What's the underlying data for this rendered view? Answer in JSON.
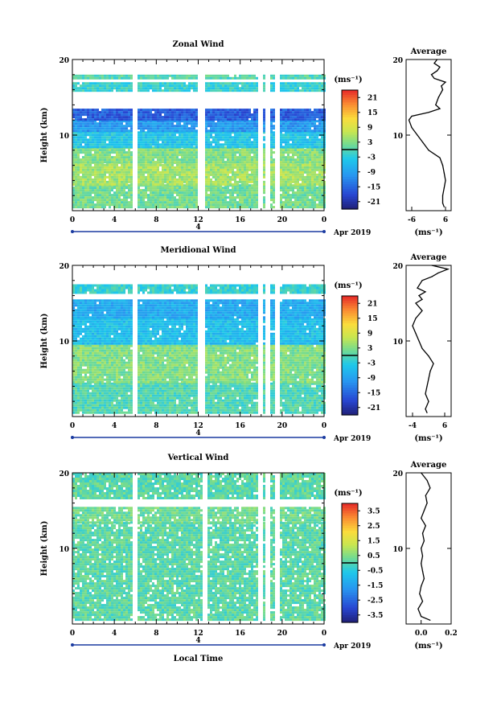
{
  "chart_data": [
    {
      "type": "heatmap",
      "title": "Zonal Wind",
      "ylabel": "Height (km)",
      "ylim": [
        0,
        20
      ],
      "yticks": [
        "10",
        "20"
      ],
      "xlim": [
        0,
        24
      ],
      "xticks": [
        "0",
        "4",
        "8",
        "12",
        "16",
        "20",
        "0"
      ],
      "date_label": "4",
      "date_suffix": "Apr 2019",
      "colorbar_unit": "(ms⁻¹)",
      "colorbar_ticks": [
        "21",
        "15",
        "9",
        "3",
        "-3",
        "-9",
        "-15",
        "-21"
      ],
      "colorbar_range": [
        -24,
        24
      ],
      "gaps_hours": [
        5.8,
        12.2,
        17.8,
        18.6,
        19.4
      ],
      "bands": [
        {
          "h0": 0.5,
          "h1": 3.5,
          "value": 2
        },
        {
          "h0": 3.5,
          "h1": 6.5,
          "value": 5
        },
        {
          "h0": 6.5,
          "h1": 8.5,
          "value": 3
        },
        {
          "h0": 8.5,
          "h1": 10.5,
          "value": -4
        },
        {
          "h0": 10.5,
          "h1": 12.0,
          "value": -10
        },
        {
          "h0": 12.0,
          "h1": 13.5,
          "value": -16
        },
        {
          "h0": 16.0,
          "h1": 17.0,
          "value": -2
        },
        {
          "h0": 17.5,
          "h1": 18.0,
          "value": 0
        }
      ],
      "average": {
        "title": "Average",
        "xlabel": "(ms⁻¹)",
        "xlim": [
          -8,
          8
        ],
        "xticks": [
          "-6",
          "6"
        ],
        "yticks": [
          "10",
          "20"
        ],
        "heights": [
          0.5,
          1,
          2,
          3,
          4,
          5,
          6,
          7,
          8,
          9,
          10,
          11,
          12,
          12.5,
          13,
          13.5,
          14,
          15,
          16,
          16.5,
          17,
          17.5,
          18,
          18.5,
          19,
          19.5,
          20
        ],
        "values": [
          5.5,
          5,
          5,
          5.5,
          6,
          5.5,
          5,
          4,
          0,
          -2,
          -4,
          -6,
          -7,
          -6,
          0,
          4,
          2.5,
          3.5,
          5,
          4.5,
          6,
          2,
          1,
          3,
          4,
          2,
          3
        ]
      }
    },
    {
      "type": "heatmap",
      "title": "Meridional Wind",
      "ylabel": "Height (km)",
      "ylim": [
        0,
        20
      ],
      "yticks": [
        "10",
        "20"
      ],
      "xlim": [
        0,
        24
      ],
      "xticks": [
        "0",
        "4",
        "8",
        "12",
        "16",
        "20",
        "0"
      ],
      "date_label": "4",
      "date_suffix": "Apr 2019",
      "colorbar_unit": "(ms⁻¹)",
      "colorbar_ticks": [
        "21",
        "15",
        "9",
        "3",
        "-3",
        "-9",
        "-15",
        "-21"
      ],
      "colorbar_range": [
        -24,
        24
      ],
      "gaps_hours": [
        5.8,
        12.2,
        17.8,
        18.6,
        19.4
      ],
      "bands": [
        {
          "h0": 0.5,
          "h1": 4.5,
          "value": 0
        },
        {
          "h0": 4.5,
          "h1": 9.5,
          "value": 3
        },
        {
          "h0": 9.5,
          "h1": 13.0,
          "value": -5
        },
        {
          "h0": 13.0,
          "h1": 15.5,
          "value": -8
        },
        {
          "h0": 16.5,
          "h1": 17.5,
          "value": -2
        }
      ],
      "average": {
        "title": "Average",
        "xlabel": "(ms⁻¹)",
        "xlim": [
          -6,
          8
        ],
        "xticks": [
          "-4",
          "6"
        ],
        "yticks": [
          "10",
          "20"
        ],
        "heights": [
          0.5,
          1,
          2,
          3,
          4,
          5,
          6,
          7,
          8,
          9,
          10,
          11,
          12,
          13,
          14,
          15,
          15.5,
          16,
          16.5,
          17,
          18,
          18.5,
          19,
          19.5,
          20
        ],
        "values": [
          0.5,
          0,
          1,
          0,
          0.5,
          1,
          1.5,
          2.5,
          1,
          -1,
          -2,
          -3,
          -4,
          -3,
          -1,
          -3,
          -1,
          -2,
          0,
          -2.5,
          -1,
          2,
          4,
          7,
          2
        ]
      }
    },
    {
      "type": "heatmap",
      "title": "Vertical Wind",
      "ylabel": "Height (km)",
      "xlabel": "Local Time",
      "ylim": [
        0,
        20
      ],
      "yticks": [
        "10",
        "20"
      ],
      "xlim": [
        0,
        24
      ],
      "xticks": [
        "0",
        "4",
        "8",
        "12",
        "16",
        "20",
        "0"
      ],
      "date_label": "4",
      "date_suffix": "Apr 2019",
      "colorbar_unit": "(ms⁻¹)",
      "colorbar_ticks": [
        "3.5",
        "2.5",
        "1.5",
        "0.5",
        "-0.5",
        "-1.5",
        "-2.5",
        "-3.5"
      ],
      "colorbar_range": [
        -4,
        4
      ],
      "gaps_hours": [
        5.8,
        12.6,
        17.8,
        18.6,
        19.4
      ],
      "bands": [
        {
          "h0": 0.5,
          "h1": 13.5,
          "value": 0.1
        },
        {
          "h0": 13.5,
          "h1": 15.5,
          "value": 0.3
        },
        {
          "h0": 16.5,
          "h1": 20.0,
          "value": 0.1
        }
      ],
      "average": {
        "title": "Average",
        "xlabel": "(ms⁻¹)",
        "xlim": [
          -0.1,
          0.2
        ],
        "xticks": [
          "0.0",
          "0.2"
        ],
        "yticks": [
          "10",
          "20"
        ],
        "heights": [
          0.5,
          1,
          2,
          3,
          4,
          5,
          6,
          7,
          8,
          9,
          10,
          11,
          12,
          13,
          14,
          15,
          16,
          17,
          18,
          19,
          20
        ],
        "values": [
          0.06,
          0.0,
          -0.02,
          0.01,
          -0.01,
          0.0,
          0.02,
          0.01,
          0.0,
          0.01,
          0.0,
          0.02,
          0.01,
          0.03,
          0.0,
          0.02,
          0.04,
          0.03,
          0.06,
          0.04,
          0.0
        ]
      }
    }
  ]
}
